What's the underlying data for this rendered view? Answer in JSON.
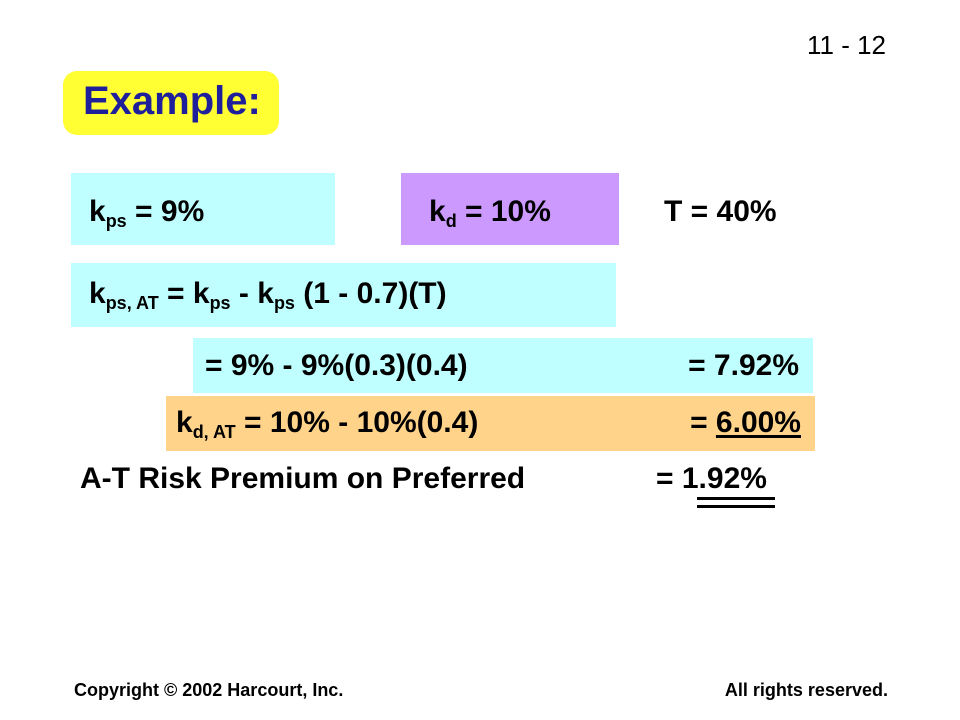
{
  "slide_number": "11 - 12",
  "title": "Example:",
  "colors": {
    "title_bg": "#ffff33",
    "title_text": "#1f1f9c",
    "cyan_box": "#bfffff",
    "lavender_box": "#cc99ff",
    "orange_box": "#ffd38a"
  },
  "line1": {
    "kps": {
      "k": "k",
      "sub": "ps",
      "rest": " = 9%"
    },
    "kd": {
      "k": "k",
      "sub": "d",
      "rest": " = 10%"
    },
    "tax": "T = 40%"
  },
  "line2": {
    "lhs_k": "k",
    "lhs_sub": "ps, AT",
    "eq": " = k",
    "sub1": "ps",
    "minus_k": " - k",
    "sub2": "ps",
    "tail": " (1 - 0.7)(T)"
  },
  "line3": {
    "expr": "= 9% - 9%(0.3)(0.4)",
    "result": "= 7.92%"
  },
  "line4": {
    "k": "k",
    "sub": "d, AT",
    "expr": " = 10% - 10%(0.4)",
    "result_eq": "= ",
    "result_val": "6.00%"
  },
  "line5": {
    "label": "A-T Risk Premium on Preferred",
    "result_eq": "= ",
    "result_val": "1.92%"
  },
  "footer": {
    "copyright": "Copyright © 2002 Harcourt, Inc.",
    "rights": "All rights reserved."
  }
}
